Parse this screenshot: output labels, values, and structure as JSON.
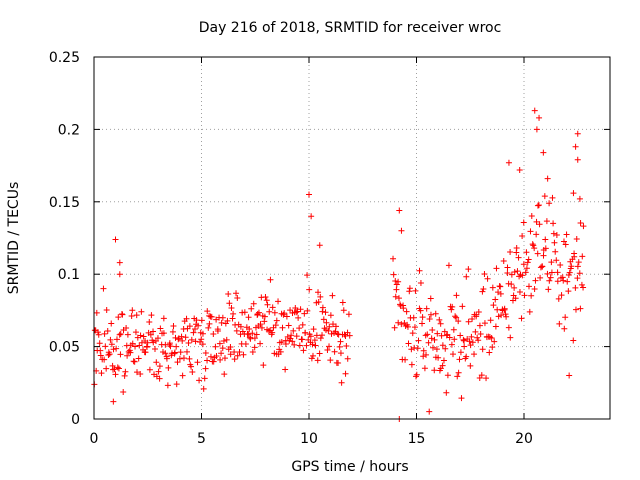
{
  "chart_data": {
    "type": "scatter",
    "title": "Day 216 of 2018, SRMTID for receiver wroc",
    "xlabel": "GPS time / hours",
    "ylabel": "SRMTID / TECUs",
    "xlim": [
      0,
      24
    ],
    "ylim": [
      0,
      0.25
    ],
    "xticks": [
      0,
      5,
      10,
      15,
      20
    ],
    "yticks": [
      0,
      0.05,
      0.1,
      0.15,
      0.2,
      0.25
    ],
    "xtick_labels": [
      "0",
      "5",
      "10",
      "15",
      "20"
    ],
    "ytick_labels": [
      "0",
      "0.05",
      "0.1",
      "0.15",
      "0.2",
      "0.25"
    ],
    "grid": true,
    "marker": "+",
    "series": [
      {
        "name": "SRMTID",
        "color": "#ff0000",
        "segments": [
          {
            "x_start": 0.0,
            "x_end": 11.9,
            "x_step": 0.033,
            "anchors": [
              [
                0,
                0.052
              ],
              [
                1,
                0.048
              ],
              [
                2,
                0.052
              ],
              [
                3,
                0.051
              ],
              [
                4,
                0.053
              ],
              [
                5,
                0.056
              ],
              [
                6,
                0.061
              ],
              [
                7,
                0.064
              ],
              [
                8,
                0.066
              ],
              [
                9,
                0.064
              ],
              [
                10,
                0.067
              ],
              [
                11,
                0.058
              ],
              [
                11.9,
                0.05
              ]
            ],
            "spread": 0.013
          },
          {
            "x_start": 13.9,
            "x_end": 22.8,
            "x_step": 0.033,
            "anchors": [
              [
                13.9,
                0.075
              ],
              [
                15,
                0.058
              ],
              [
                16,
                0.053
              ],
              [
                17,
                0.055
              ],
              [
                18,
                0.06
              ],
              [
                19,
                0.078
              ],
              [
                20,
                0.108
              ],
              [
                21,
                0.12
              ],
              [
                22,
                0.094
              ],
              [
                22.8,
                0.11
              ]
            ],
            "spread": 0.018
          }
        ],
        "notable_points": [
          [
            1.0,
            0.124
          ],
          [
            1.2,
            0.108
          ],
          [
            1.2,
            0.1
          ],
          [
            0.9,
            0.012
          ],
          [
            10.0,
            0.155
          ],
          [
            10.1,
            0.14
          ],
          [
            10.5,
            0.12
          ],
          [
            14.2,
            0.144
          ],
          [
            14.3,
            0.13
          ],
          [
            19.3,
            0.177
          ],
          [
            19.8,
            0.172
          ],
          [
            20.5,
            0.213
          ],
          [
            20.7,
            0.208
          ],
          [
            20.6,
            0.2
          ],
          [
            20.9,
            0.184
          ],
          [
            21.1,
            0.166
          ],
          [
            22.5,
            0.197
          ],
          [
            22.4,
            0.188
          ],
          [
            22.5,
            0.179
          ],
          [
            22.3,
            0.156
          ],
          [
            22.6,
            0.152
          ],
          [
            22.1,
            0.03
          ],
          [
            14.2,
            0.0
          ]
        ]
      }
    ]
  }
}
